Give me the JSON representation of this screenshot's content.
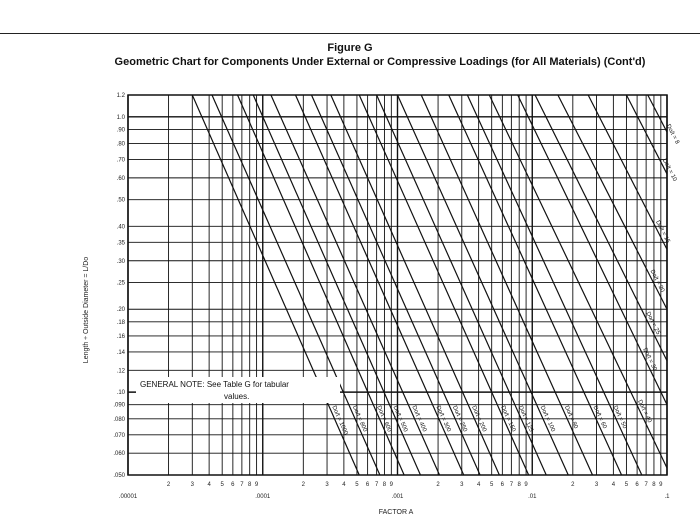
{
  "figure_label": "Figure G",
  "chart_data": {
    "type": "line",
    "title": "Geometric Chart for Components Under External or Compressive Loadings (for All Materials) (Cont'd)",
    "xlabel": "FACTOR A",
    "ylabel": "Length ÷ Outside Diameter = L/Do",
    "x_scale": "log",
    "y_scale": "log",
    "xlim": [
      1e-05,
      0.1
    ],
    "ylim": [
      0.05,
      1.2
    ],
    "grid": true,
    "x_decade_labels": [
      ".00001",
      ".0001",
      ".001",
      ".01",
      ".1"
    ],
    "x_minor_labels": [
      "2",
      "3",
      "4",
      "5",
      "6",
      "7",
      "8",
      "9"
    ],
    "y_tick_values": [
      0.05,
      0.06,
      0.07,
      0.08,
      0.09,
      0.1,
      0.12,
      0.14,
      0.16,
      0.18,
      0.2,
      0.25,
      0.3,
      0.35,
      0.4,
      0.5,
      0.6,
      0.7,
      0.8,
      0.9,
      1.0,
      1.2
    ],
    "y_tick_labels": [
      ".050",
      ".060",
      ".070",
      ".080",
      ".090",
      ".10",
      ".12",
      ".14",
      ".16",
      ".18",
      ".20",
      ".25",
      ".30",
      ".35",
      ".40",
      ".50",
      ".60",
      ".70",
      ".80",
      ".90",
      "1.0",
      "1.2"
    ],
    "series": [
      {
        "name": "Do/t = 1000",
        "points": [
          [
            3e-05,
            1.2
          ],
          [
            0.00052,
            0.05
          ]
        ]
      },
      {
        "name": "Do/t = 800",
        "points": [
          [
            4.2e-05,
            1.2
          ],
          [
            0.00074,
            0.05
          ]
        ]
      },
      {
        "name": "Do/t = 600",
        "points": [
          [
            6.5e-05,
            1.2
          ],
          [
            0.00112,
            0.05
          ]
        ]
      },
      {
        "name": "Do/t = 500",
        "points": [
          [
            8.5e-05,
            1.2
          ],
          [
            0.00148,
            0.05
          ]
        ]
      },
      {
        "name": "Do/t = 400",
        "points": [
          [
            0.000115,
            1.2
          ],
          [
            0.00205,
            0.05
          ]
        ]
      },
      {
        "name": "Do/t = 300",
        "points": [
          [
            0.000175,
            1.2
          ],
          [
            0.0031,
            0.05
          ]
        ]
      },
      {
        "name": "Do/t = 250",
        "points": [
          [
            0.00023,
            1.2
          ],
          [
            0.0041,
            0.05
          ]
        ]
      },
      {
        "name": "Do/t = 200",
        "points": [
          [
            0.00032,
            1.2
          ],
          [
            0.0057,
            0.05
          ]
        ]
      },
      {
        "name": "Do/t = 150",
        "points": [
          [
            0.00052,
            1.2
          ],
          [
            0.0094,
            0.05
          ]
        ]
      },
      {
        "name": "Do/t = 125",
        "points": [
          [
            0.0007,
            1.2
          ],
          [
            0.0127,
            0.05
          ]
        ]
      },
      {
        "name": "Do/t = 100",
        "points": [
          [
            0.001,
            1.2
          ],
          [
            0.0185,
            0.05
          ]
        ]
      },
      {
        "name": "Do/t = 80",
        "points": [
          [
            0.0015,
            1.2
          ],
          [
            0.028,
            0.05
          ]
        ]
      },
      {
        "name": "Do/t = 60",
        "points": [
          [
            0.0024,
            1.2
          ],
          [
            0.046,
            0.05
          ]
        ]
      },
      {
        "name": "Do/t = 50",
        "points": [
          [
            0.0033,
            1.2
          ],
          [
            0.065,
            0.05
          ]
        ]
      },
      {
        "name": "Do/t = 40",
        "points": [
          [
            0.0048,
            1.2
          ],
          [
            0.1,
            0.053
          ]
        ]
      },
      {
        "name": "Do/t = 30",
        "points": [
          [
            0.0078,
            1.2
          ],
          [
            0.1,
            0.09
          ]
        ]
      },
      {
        "name": "Do/t = 25",
        "points": [
          [
            0.0105,
            1.2
          ],
          [
            0.1,
            0.13
          ]
        ]
      },
      {
        "name": "Do/t = 20",
        "points": [
          [
            0.0155,
            1.2
          ],
          [
            0.1,
            0.2
          ]
        ]
      },
      {
        "name": "Do/t = 15",
        "points": [
          [
            0.026,
            1.2
          ],
          [
            0.1,
            0.33
          ]
        ]
      },
      {
        "name": "Do/t = 10",
        "points": [
          [
            0.05,
            1.2
          ],
          [
            0.1,
            0.62
          ]
        ]
      },
      {
        "name": "Do/t = 8",
        "points": [
          [
            0.072,
            1.2
          ],
          [
            0.1,
            0.88
          ]
        ]
      }
    ],
    "annotations": [
      {
        "text": "GENERAL NOTE: See Table G for tabular values."
      }
    ]
  }
}
